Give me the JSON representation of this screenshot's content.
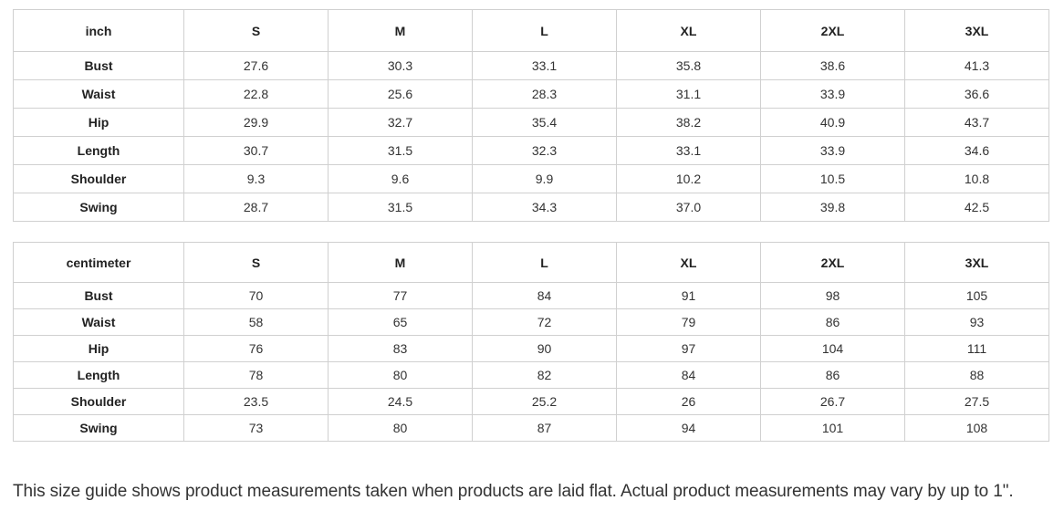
{
  "sizes": [
    "S",
    "M",
    "L",
    "XL",
    "2XL",
    "3XL"
  ],
  "inch_table": {
    "unit": "inch",
    "rows": [
      {
        "label": "Bust",
        "values": [
          "27.6",
          "30.3",
          "33.1",
          "35.8",
          "38.6",
          "41.3"
        ]
      },
      {
        "label": "Waist",
        "values": [
          "22.8",
          "25.6",
          "28.3",
          "31.1",
          "33.9",
          "36.6"
        ]
      },
      {
        "label": "Hip",
        "values": [
          "29.9",
          "32.7",
          "35.4",
          "38.2",
          "40.9",
          "43.7"
        ]
      },
      {
        "label": "Length",
        "values": [
          "30.7",
          "31.5",
          "32.3",
          "33.1",
          "33.9",
          "34.6"
        ]
      },
      {
        "label": "Shoulder",
        "values": [
          "9.3",
          "9.6",
          "9.9",
          "10.2",
          "10.5",
          "10.8"
        ]
      },
      {
        "label": "Swing",
        "values": [
          "28.7",
          "31.5",
          "34.3",
          "37.0",
          "39.8",
          "42.5"
        ]
      }
    ]
  },
  "cm_table": {
    "unit": "centimeter",
    "rows": [
      {
        "label": "Bust",
        "values": [
          "70",
          "77",
          "84",
          "91",
          "98",
          "105"
        ]
      },
      {
        "label": "Waist",
        "values": [
          "58",
          "65",
          "72",
          "79",
          "86",
          "93"
        ]
      },
      {
        "label": "Hip",
        "values": [
          "76",
          "83",
          "90",
          "97",
          "104",
          "111"
        ]
      },
      {
        "label": "Length",
        "values": [
          "78",
          "80",
          "82",
          "84",
          "86",
          "88"
        ]
      },
      {
        "label": "Shoulder",
        "values": [
          "23.5",
          "24.5",
          "25.2",
          "26",
          "26.7",
          "27.5"
        ]
      },
      {
        "label": "Swing",
        "values": [
          "73",
          "80",
          "87",
          "94",
          "101",
          "108"
        ]
      }
    ]
  },
  "note": "This size guide shows product measurements taken when products are laid flat. Actual product measurements may vary by up to 1\"."
}
